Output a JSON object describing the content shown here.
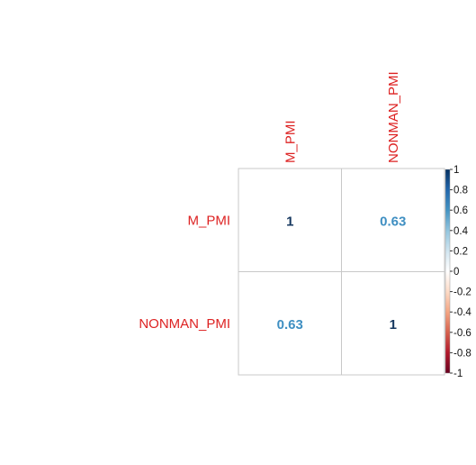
{
  "chart_data": {
    "type": "heatmap",
    "variables": [
      "M_PMI",
      "NONMAN_PMI"
    ],
    "matrix": [
      [
        1,
        0.63
      ],
      [
        0.63,
        1
      ]
    ],
    "cell_labels": [
      [
        "1",
        "0.63"
      ],
      [
        "0.63",
        "1"
      ]
    ],
    "colorbar": {
      "range": [
        -1,
        1
      ],
      "ticks": [
        "1",
        "0.8",
        "0.6",
        "0.4",
        "0.2",
        "0",
        "-0.2",
        "-0.4",
        "-0.6",
        "-0.8",
        "-1"
      ],
      "tick_values": [
        1,
        0.8,
        0.6,
        0.4,
        0.2,
        0,
        -0.2,
        -0.4,
        -0.6,
        -0.8,
        -1
      ]
    },
    "grid": true,
    "legend_placement": "right"
  },
  "colors": {
    "label_red": "#dd2222",
    "strong_blue": "#15375f",
    "mid_blue": "#3f8fc2",
    "grid": "#c8c8c8"
  }
}
